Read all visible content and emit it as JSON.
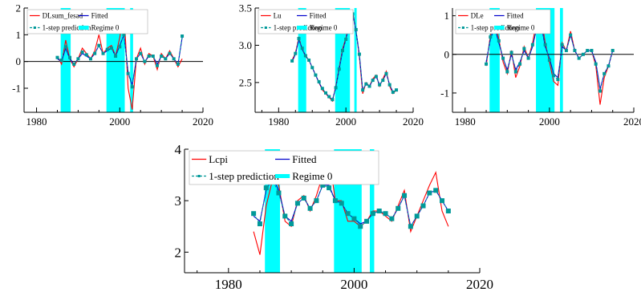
{
  "chart_data": [
    {
      "type": "line",
      "x_range": [
        1977,
        2020
      ],
      "ylim": [
        -1.9,
        2.0
      ],
      "x_ticks": [
        "1980",
        "2000",
        "2020"
      ],
      "y_ticks": [
        "2",
        "1",
        "0",
        "-1"
      ],
      "zero_line": true,
      "regime_bands": [
        [
          1985.8,
          1988.2
        ],
        [
          1996.8,
          2001.2
        ],
        [
          2002.5,
          2003.2
        ]
      ],
      "legend": {
        "actual": "DLsum_fesad",
        "fitted": "Fitted",
        "prediction": "1-step prediction",
        "regime": "Regime 0"
      },
      "x": [
        1985,
        1986,
        1987,
        1988,
        1989,
        1990,
        1991,
        1992,
        1993,
        1994,
        1995,
        1996,
        1997,
        1998,
        1999,
        2000,
        2001,
        2002,
        2003,
        2004,
        2005,
        2006,
        2007,
        2008,
        2009,
        2010,
        2011,
        2012,
        2013,
        2014,
        2015
      ],
      "series": [
        {
          "name": "DLsum_fesad",
          "values": [
            0.2,
            -0.1,
            0.8,
            0.1,
            -0.2,
            0.1,
            0.5,
            0.3,
            0.1,
            0.4,
            1.0,
            0.3,
            0.5,
            0.6,
            0.2,
            0.9,
            1.9,
            -1.0,
            -1.8,
            0.1,
            0.5,
            -0.1,
            0.3,
            0.2,
            -0.3,
            0.3,
            0.1,
            0.4,
            0.1,
            -0.2,
            0.1
          ]
        },
        {
          "name": "Fitted",
          "values": [
            0.1,
            0.0,
            0.5,
            0.1,
            -0.1,
            0.1,
            0.3,
            0.2,
            0.1,
            0.3,
            0.6,
            0.3,
            0.4,
            0.5,
            0.2,
            0.6,
            1.0,
            -0.4,
            -0.9,
            0.1,
            0.3,
            0.0,
            0.2,
            0.2,
            -0.1,
            0.2,
            0.1,
            0.3,
            0.1,
            -0.1,
            0.9
          ]
        },
        {
          "name": "1-step prediction",
          "values": [
            0.15,
            0.05,
            0.55,
            0.15,
            -0.1,
            0.1,
            0.35,
            0.25,
            0.1,
            0.3,
            0.6,
            0.3,
            0.45,
            0.5,
            0.2,
            0.55,
            1.0,
            -0.45,
            -0.95,
            0.1,
            0.3,
            0.0,
            0.2,
            0.2,
            -0.15,
            0.2,
            0.1,
            0.3,
            0.1,
            -0.1,
            0.95
          ]
        }
      ]
    },
    {
      "type": "line",
      "x_range": [
        1973,
        2020
      ],
      "ylim": [
        2.1,
        3.5
      ],
      "x_ticks": [
        "1980",
        "2000",
        "2020"
      ],
      "y_ticks": [
        "3.5",
        "3.0",
        "2.5"
      ],
      "zero_line": false,
      "regime_bands": [
        [
          1985.8,
          1988.2
        ],
        [
          1996.8,
          2001.2
        ],
        [
          2002.5,
          2003.2
        ]
      ],
      "legend": {
        "actual": "Lu",
        "fitted": "Fitted",
        "prediction": "1-step prediction",
        "regime": "Regime 0"
      },
      "x": [
        1984,
        1985,
        1986,
        1987,
        1988,
        1989,
        1990,
        1991,
        1992,
        1993,
        1994,
        1995,
        1996,
        1997,
        1998,
        1999,
        2000,
        2001,
        2002,
        2003,
        2004,
        2005,
        2006,
        2007,
        2008,
        2009,
        2010,
        2011,
        2012,
        2013,
        2014,
        2015
      ],
      "series": [
        {
          "name": "Lu",
          "values": [
            2.8,
            2.9,
            3.1,
            2.95,
            2.85,
            2.8,
            2.7,
            2.6,
            2.5,
            2.4,
            2.35,
            2.3,
            2.25,
            2.45,
            2.7,
            2.95,
            3.1,
            3.3,
            3.45,
            3.2,
            2.85,
            2.35,
            2.5,
            2.45,
            2.55,
            2.6,
            2.45,
            2.55,
            2.65,
            2.45,
            2.35,
            2.4
          ]
        },
        {
          "name": "Fitted",
          "values": [
            2.78,
            2.88,
            3.08,
            2.95,
            2.86,
            2.8,
            2.7,
            2.6,
            2.5,
            2.42,
            2.36,
            2.31,
            2.27,
            2.43,
            2.68,
            2.92,
            3.08,
            3.28,
            3.42,
            3.2,
            2.88,
            2.4,
            2.48,
            2.45,
            2.53,
            2.58,
            2.47,
            2.53,
            2.62,
            2.47,
            2.37,
            2.4
          ]
        },
        {
          "name": "1-step prediction",
          "values": [
            2.79,
            2.89,
            3.09,
            2.96,
            2.86,
            2.8,
            2.7,
            2.6,
            2.51,
            2.42,
            2.36,
            2.31,
            2.27,
            2.43,
            2.68,
            2.93,
            3.08,
            3.28,
            3.42,
            3.21,
            2.88,
            2.4,
            2.48,
            2.45,
            2.53,
            2.58,
            2.47,
            2.53,
            2.62,
            2.47,
            2.37,
            2.4
          ]
        }
      ]
    },
    {
      "type": "line",
      "x_range": [
        1977,
        2020
      ],
      "ylim": [
        -1.5,
        1.2
      ],
      "x_ticks": [
        "1980",
        "2000",
        "2020"
      ],
      "y_ticks": [
        "1",
        "0",
        "-1"
      ],
      "zero_line": true,
      "regime_bands": [
        [
          1985.8,
          1988.2
        ],
        [
          1996.8,
          2001.2
        ],
        [
          2002.5,
          2003.2
        ]
      ],
      "legend": {
        "actual": "DLe",
        "fitted": "Fitted",
        "prediction": "1-step prediction",
        "regime": "Regime 0"
      },
      "x": [
        1985,
        1986,
        1987,
        1988,
        1989,
        1990,
        1991,
        1992,
        1993,
        1994,
        1995,
        1996,
        1997,
        1998,
        1999,
        2000,
        2001,
        2002,
        2003,
        2004,
        2005,
        2006,
        2007,
        2008,
        2009,
        2010,
        2011,
        2012,
        2013,
        2014,
        2015
      ],
      "series": [
        {
          "name": "DLe",
          "values": [
            -0.3,
            0.5,
            0.9,
            0.4,
            -0.2,
            -0.5,
            0.1,
            -0.6,
            -0.3,
            0.2,
            -0.1,
            0.3,
            0.9,
            1.0,
            0.3,
            -0.2,
            -0.7,
            -0.8,
            0.3,
            0.1,
            0.6,
            0.1,
            -0.1,
            0.0,
            0.1,
            0.1,
            -0.3,
            -1.3,
            -0.6,
            -0.3,
            0.1
          ]
        },
        {
          "name": "Fitted",
          "values": [
            -0.2,
            0.4,
            0.7,
            0.3,
            -0.1,
            -0.4,
            0.0,
            -0.4,
            -0.2,
            0.1,
            -0.1,
            0.2,
            0.7,
            0.8,
            0.2,
            -0.1,
            -0.5,
            -0.6,
            0.2,
            0.1,
            0.5,
            0.1,
            -0.1,
            0.0,
            0.1,
            0.1,
            -0.2,
            -0.9,
            -0.5,
            -0.3,
            0.1
          ]
        },
        {
          "name": "1-step prediction",
          "values": [
            -0.25,
            0.45,
            0.75,
            0.35,
            -0.1,
            -0.45,
            0.05,
            -0.45,
            -0.25,
            0.15,
            -0.1,
            0.25,
            0.75,
            0.85,
            0.25,
            -0.15,
            -0.55,
            -0.65,
            0.25,
            0.1,
            0.5,
            0.1,
            -0.1,
            0.0,
            0.1,
            0.1,
            -0.25,
            -0.95,
            -0.5,
            -0.3,
            0.1
          ]
        }
      ]
    },
    {
      "type": "line",
      "x_range": [
        1973,
        2020
      ],
      "ylim": [
        1.6,
        4.0
      ],
      "x_ticks": [
        "1980",
        "2000",
        "2020"
      ],
      "y_ticks": [
        "4",
        "3",
        "2"
      ],
      "zero_line": false,
      "regime_bands": [
        [
          1985.8,
          1988.2
        ],
        [
          1996.8,
          2001.2
        ],
        [
          2002.5,
          2003.2
        ]
      ],
      "legend": {
        "actual": "Lcpi",
        "fitted": "Fitted",
        "prediction": "1-step prediction",
        "regime": "Regime 0"
      },
      "x": [
        1984,
        1985,
        1986,
        1987,
        1988,
        1989,
        1990,
        1991,
        1992,
        1993,
        1994,
        1995,
        1996,
        1997,
        1998,
        1999,
        2000,
        2001,
        2002,
        2003,
        2004,
        2005,
        2006,
        2007,
        2008,
        2009,
        2010,
        2011,
        2012,
        2013,
        2014,
        2015
      ],
      "series": [
        {
          "name": "Lcpi",
          "values": [
            2.4,
            1.95,
            2.9,
            3.4,
            3.3,
            2.6,
            2.5,
            3.0,
            3.1,
            2.8,
            3.1,
            3.5,
            3.9,
            3.0,
            3.0,
            2.6,
            2.6,
            2.5,
            2.6,
            2.8,
            2.8,
            2.7,
            2.6,
            2.9,
            3.2,
            2.4,
            2.7,
            3.0,
            3.3,
            3.55,
            2.8,
            2.5
          ]
        },
        {
          "name": "Fitted",
          "values": [
            2.7,
            2.6,
            3.2,
            3.45,
            3.2,
            2.7,
            2.6,
            2.95,
            3.05,
            2.85,
            3.0,
            3.3,
            3.3,
            3.0,
            2.95,
            2.75,
            2.65,
            2.55,
            2.6,
            2.75,
            2.8,
            2.75,
            2.65,
            2.85,
            3.1,
            2.5,
            2.7,
            2.9,
            3.15,
            3.2,
            3.0,
            2.8
          ]
        },
        {
          "name": "1-step prediction",
          "values": [
            2.75,
            2.55,
            3.25,
            3.4,
            3.15,
            2.7,
            2.55,
            2.95,
            3.05,
            2.85,
            3.0,
            3.3,
            3.25,
            3.0,
            2.95,
            2.75,
            2.65,
            2.5,
            2.6,
            2.75,
            2.8,
            2.75,
            2.65,
            2.85,
            3.1,
            2.5,
            2.7,
            2.9,
            3.15,
            3.2,
            3.0,
            2.8
          ]
        }
      ]
    }
  ],
  "colors": {
    "actual": "#ff0000",
    "fitted": "#0000cc",
    "prediction": "#009999",
    "regime": "#00ffff",
    "axis": "#000000",
    "zero": "#000000"
  }
}
